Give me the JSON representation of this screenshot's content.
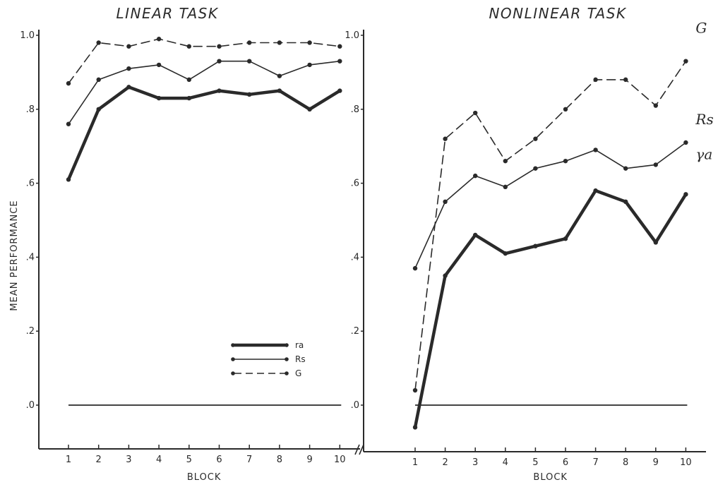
{
  "chart_data": [
    {
      "type": "line",
      "title": "LINEAR TASK",
      "xlabel": "BLOCK",
      "ylabel": "MEAN PERFORMANCE",
      "x": [
        1,
        2,
        3,
        4,
        5,
        6,
        7,
        8,
        9,
        10
      ],
      "xlim": [
        0,
        11
      ],
      "ylim": [
        -0.12,
        1.0
      ],
      "yticks": [
        0.0,
        0.2,
        0.4,
        0.6,
        0.8,
        1.0
      ],
      "ytick_labels": [
        ".0",
        ".2",
        ".4",
        ".6",
        ".8",
        "1.0"
      ],
      "reference_line": 0.0,
      "legend_position": "lower-right",
      "series": [
        {
          "name": "ra",
          "style": "thick-solid",
          "values": [
            0.61,
            0.8,
            0.86,
            0.83,
            0.83,
            0.85,
            0.84,
            0.85,
            0.8,
            0.85
          ]
        },
        {
          "name": "Rs",
          "style": "thin-solid",
          "values": [
            0.76,
            0.88,
            0.91,
            0.92,
            0.88,
            0.93,
            0.93,
            0.89,
            0.92,
            0.93
          ]
        },
        {
          "name": "G",
          "style": "dashed",
          "values": [
            0.87,
            0.98,
            0.97,
            0.99,
            0.97,
            0.97,
            0.98,
            0.98,
            0.98,
            0.97
          ]
        }
      ]
    },
    {
      "type": "line",
      "title": "NONLINEAR TASK",
      "xlabel": "BLOCK",
      "ylabel": "",
      "x": [
        1,
        2,
        3,
        4,
        5,
        6,
        7,
        8,
        9,
        10
      ],
      "xlim": [
        0,
        11
      ],
      "ylim": [
        -0.12,
        1.0
      ],
      "yticks": [
        0.0,
        0.2,
        0.4,
        0.6,
        0.8,
        1.0
      ],
      "ytick_labels": [
        ".0",
        ".2",
        ".4",
        ".6",
        ".8",
        "1.0"
      ],
      "reference_line": 0.0,
      "series": [
        {
          "name": "ra",
          "label": "γa",
          "style": "thick-solid",
          "values": [
            -0.06,
            0.35,
            0.46,
            0.41,
            0.43,
            0.45,
            0.58,
            0.55,
            0.44,
            0.57
          ]
        },
        {
          "name": "Rs",
          "label": "Rs",
          "style": "thin-solid",
          "values": [
            0.37,
            0.55,
            0.62,
            0.59,
            0.64,
            0.66,
            0.69,
            0.64,
            0.65,
            0.71
          ]
        },
        {
          "name": "G",
          "label": "G",
          "style": "dashed",
          "values": [
            0.04,
            0.72,
            0.79,
            0.66,
            0.72,
            0.8,
            0.88,
            0.88,
            0.81,
            0.93
          ]
        }
      ]
    }
  ],
  "colors": {
    "ink": "#2a2a2a",
    "background": "#ffffff"
  }
}
